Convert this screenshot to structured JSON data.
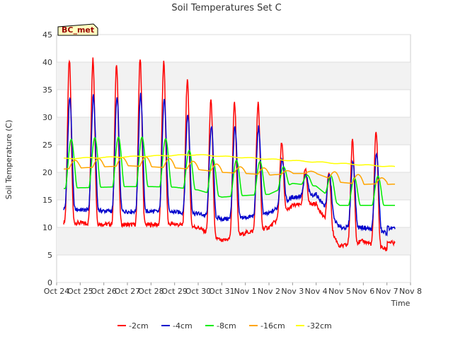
{
  "chart_data": {
    "type": "line",
    "title": "Soil Temperatures Set C",
    "xlabel": "Time",
    "ylabel": "Soil Temperature (C)",
    "ylim": [
      0,
      45
    ],
    "xlim_days": [
      0,
      15
    ],
    "y_ticks": [
      "0",
      "5",
      "10",
      "15",
      "20",
      "25",
      "30",
      "35",
      "40",
      "45"
    ],
    "x_ticks": [
      "Oct 24",
      "Oct 25",
      "Oct 26",
      "Oct 27",
      "Oct 28",
      "Oct 29",
      "Oct 30",
      "Oct 31",
      "Nov 1",
      "Nov 2",
      "Nov 3",
      "Nov 4",
      "Nov 5",
      "Nov 6",
      "Nov 7",
      "Nov 8"
    ],
    "grid": true,
    "legend_placement": "bottom-center",
    "station_label": "BC_met",
    "series": [
      {
        "name": "-2cm",
        "color": "#ff0000",
        "daily_min": [
          11.0,
          10.8,
          10.6,
          10.5,
          10.5,
          10.6,
          10.0,
          7.5,
          9.0,
          10.0,
          14.0,
          14.3,
          6.5,
          7.5,
          6.0
        ],
        "daily_max": [
          40.4,
          40.6,
          39.8,
          40.8,
          40.0,
          36.8,
          33.3,
          32.8,
          32.6,
          25.3,
          20.5,
          20.0,
          25.8,
          27.5
        ]
      },
      {
        "name": "-4cm",
        "color": "#0000cc",
        "daily_min": [
          13.5,
          13.2,
          13.0,
          12.9,
          12.9,
          12.8,
          12.5,
          11.5,
          11.8,
          12.5,
          15.5,
          16.0,
          10.0,
          10.0,
          9.0
        ],
        "daily_max": [
          33.5,
          33.8,
          33.5,
          34.2,
          33.5,
          30.5,
          28.5,
          28.3,
          28.2,
          22.5,
          19.5,
          19.5,
          22.0,
          23.5
        ]
      },
      {
        "name": "-8cm",
        "color": "#00ee00",
        "daily_min": [
          17.0,
          17.2,
          17.3,
          17.4,
          17.4,
          17.3,
          16.8,
          15.5,
          15.8,
          16.0,
          18.0,
          17.5,
          14.0,
          14.0,
          14.0
        ],
        "daily_max": [
          26.0,
          26.3,
          26.4,
          26.4,
          26.1,
          24.0,
          22.5,
          22.2,
          22.0,
          21.0,
          19.5,
          19.4,
          19.0,
          19.3
        ]
      },
      {
        "name": "-16cm",
        "color": "#ffa500",
        "daily_min": [
          20.5,
          20.8,
          21.0,
          21.2,
          21.0,
          20.8,
          20.5,
          20.0,
          19.8,
          19.5,
          19.8,
          19.8,
          18.2,
          17.8,
          18.0
        ],
        "daily_max": [
          22.2,
          22.5,
          22.7,
          22.8,
          22.5,
          22.0,
          21.5,
          21.0,
          20.8,
          20.3,
          20.2,
          20.1,
          19.6,
          19.0
        ]
      },
      {
        "name": "-32cm",
        "color": "#ffff00",
        "start": 22.5,
        "peak": 23.2,
        "end": 21.0
      }
    ]
  }
}
